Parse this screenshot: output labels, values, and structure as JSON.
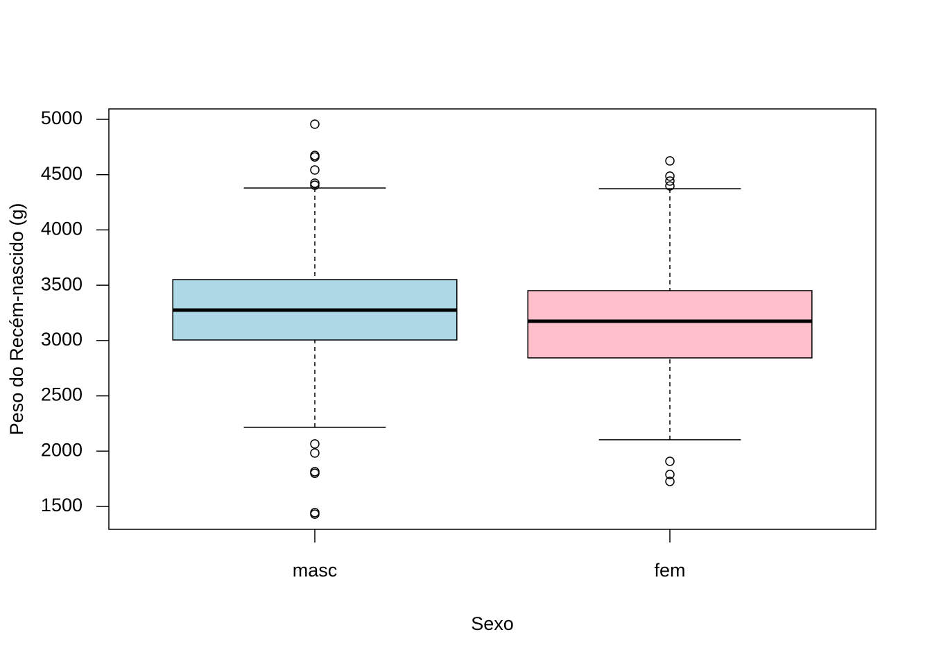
{
  "chart_data": {
    "type": "box",
    "xlabel": "Sexo",
    "ylabel": "Peso do Recém-nascido (g)",
    "categories": [
      "masc",
      "fem"
    ],
    "boxes": [
      {
        "min": 2215,
        "q1": 3005,
        "median": 3275,
        "q3": 3551,
        "max": 4379,
        "color": "#add8e6",
        "outliers": [
          4956,
          4674,
          4660,
          4542,
          4423,
          4404,
          2065,
          1983,
          1814,
          1800,
          1444,
          1430
        ]
      },
      {
        "min": 2103,
        "q1": 2843,
        "median": 3175,
        "q3": 3451,
        "max": 4373,
        "color": "#ffc0cb",
        "outliers": [
          4624,
          4486,
          4442,
          4398,
          1908,
          1789,
          1726
        ]
      }
    ],
    "ylim": [
      1293,
      5094
    ],
    "yticks": [
      1500,
      2000,
      2500,
      3000,
      3500,
      4000,
      4500,
      5000
    ]
  }
}
